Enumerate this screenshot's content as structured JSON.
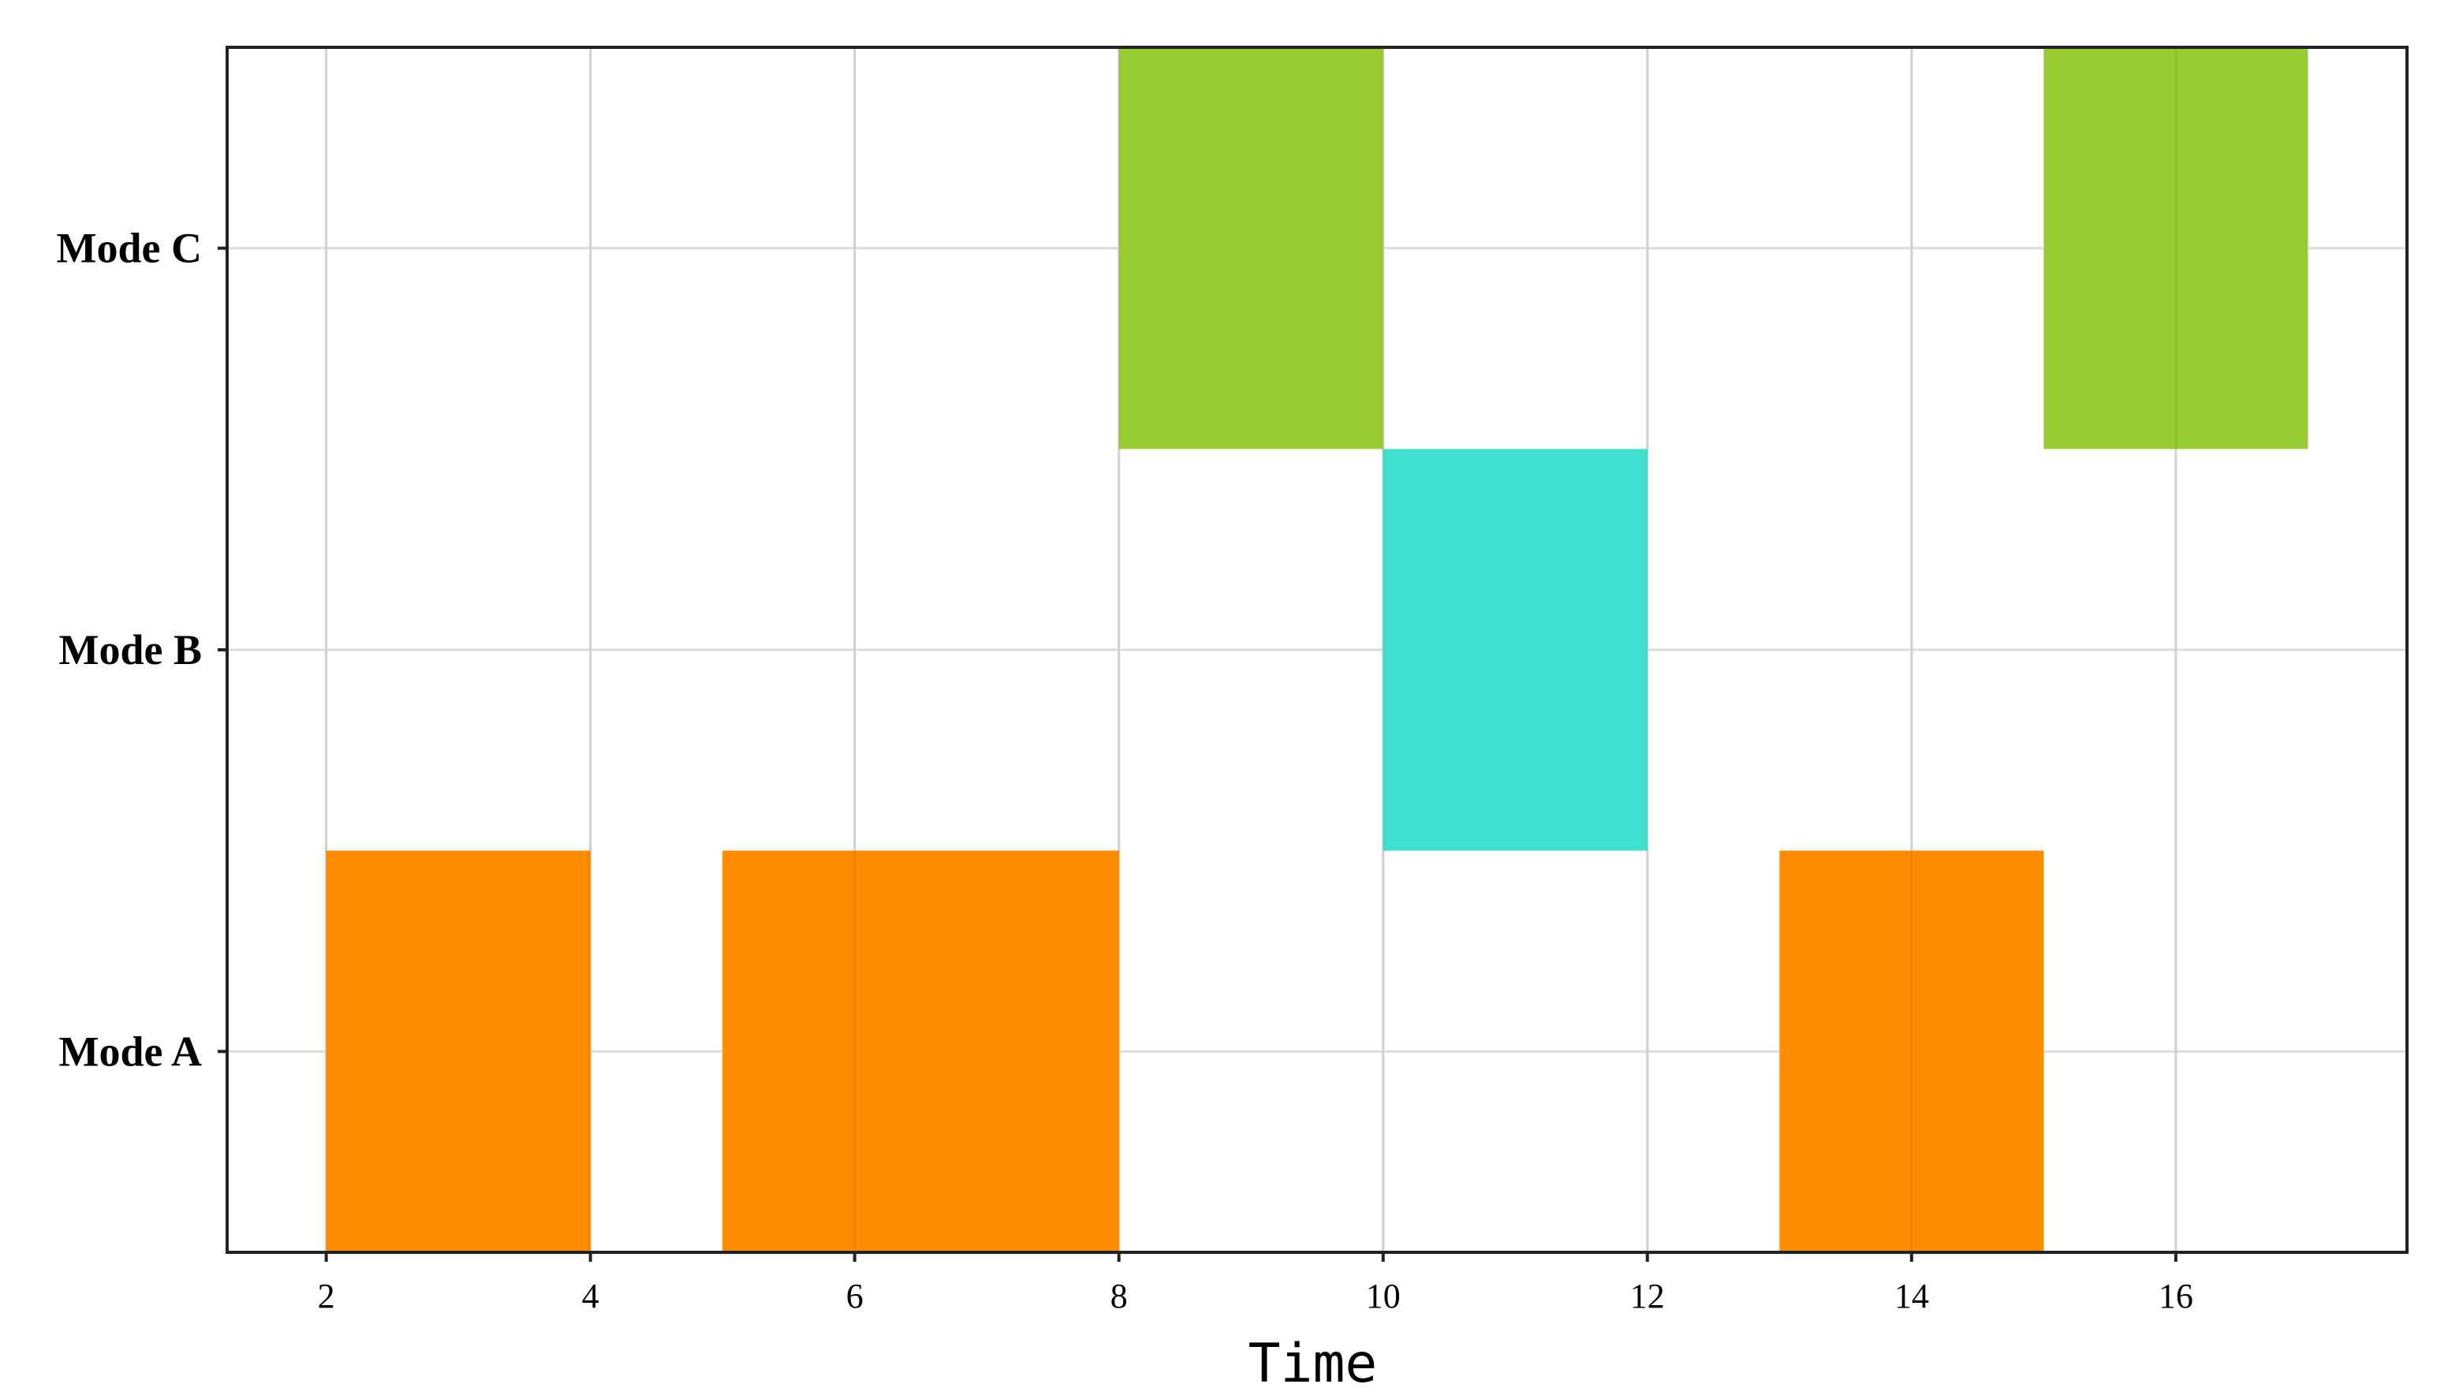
{
  "chart_data": {
    "type": "bar",
    "subtype": "gantt",
    "title": "",
    "xlabel": "Time",
    "ylabel": "",
    "xlim": [
      1.25,
      17.75
    ],
    "x_ticks": [
      2,
      4,
      6,
      8,
      10,
      12,
      14,
      16
    ],
    "categories": [
      "Mode A",
      "Mode B",
      "Mode C"
    ],
    "grid": true,
    "legend": "none",
    "colors": {
      "Mode A": "#ff8c00",
      "Mode B": "#40e0d0",
      "Mode C": "#9acd32"
    },
    "segments": [
      {
        "category": "Mode A",
        "start": 2,
        "end": 4
      },
      {
        "category": "Mode A",
        "start": 5,
        "end": 8
      },
      {
        "category": "Mode C",
        "start": 8,
        "end": 10
      },
      {
        "category": "Mode B",
        "start": 10,
        "end": 12
      },
      {
        "category": "Mode A",
        "start": 13,
        "end": 15
      },
      {
        "category": "Mode C",
        "start": 15,
        "end": 17
      }
    ]
  }
}
